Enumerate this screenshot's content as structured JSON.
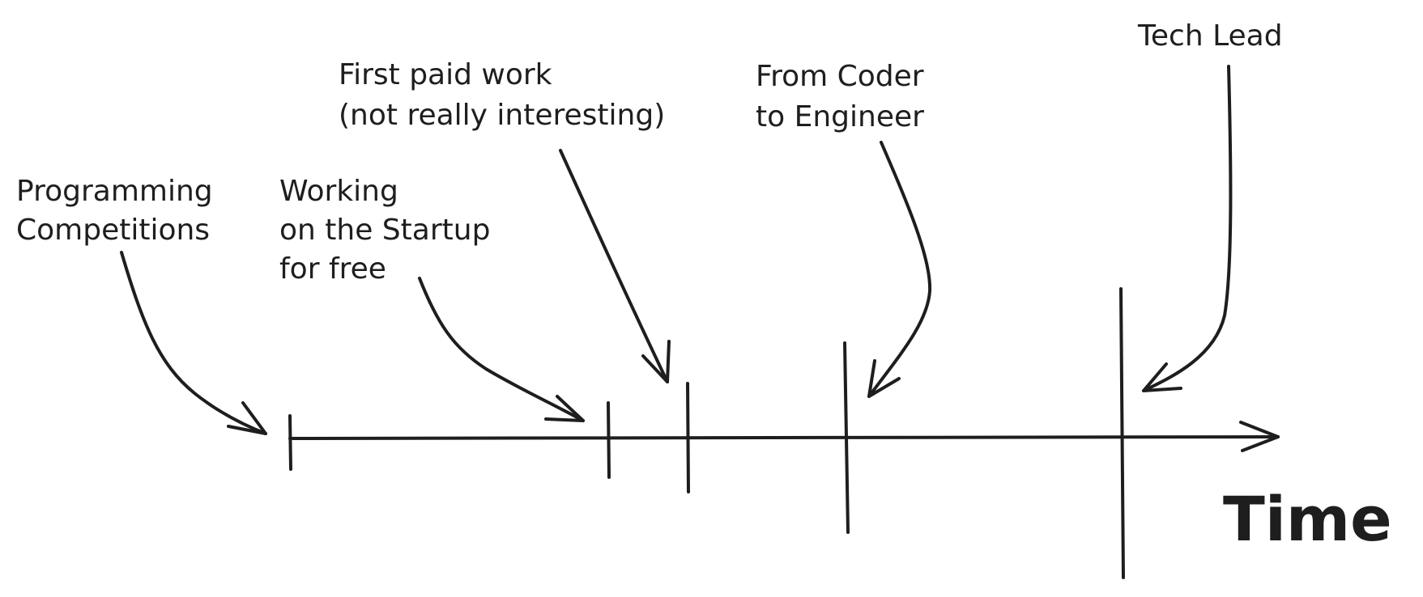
{
  "diagram": {
    "axis_label": "Time",
    "milestones": [
      {
        "id": "programming-competitions",
        "lines": [
          "Programming",
          "Competitions"
        ]
      },
      {
        "id": "working-on-startup",
        "lines": [
          "Working",
          "on the Startup",
          "for free"
        ]
      },
      {
        "id": "first-paid-work",
        "lines": [
          "First paid work",
          "(not really interesting)"
        ]
      },
      {
        "id": "from-coder-to-engineer",
        "lines": [
          "From Coder",
          "to Engineer"
        ]
      },
      {
        "id": "tech-lead",
        "lines": [
          "Tech Lead"
        ]
      }
    ],
    "ink_color": "#1e1e1e",
    "background": "#ffffff"
  }
}
